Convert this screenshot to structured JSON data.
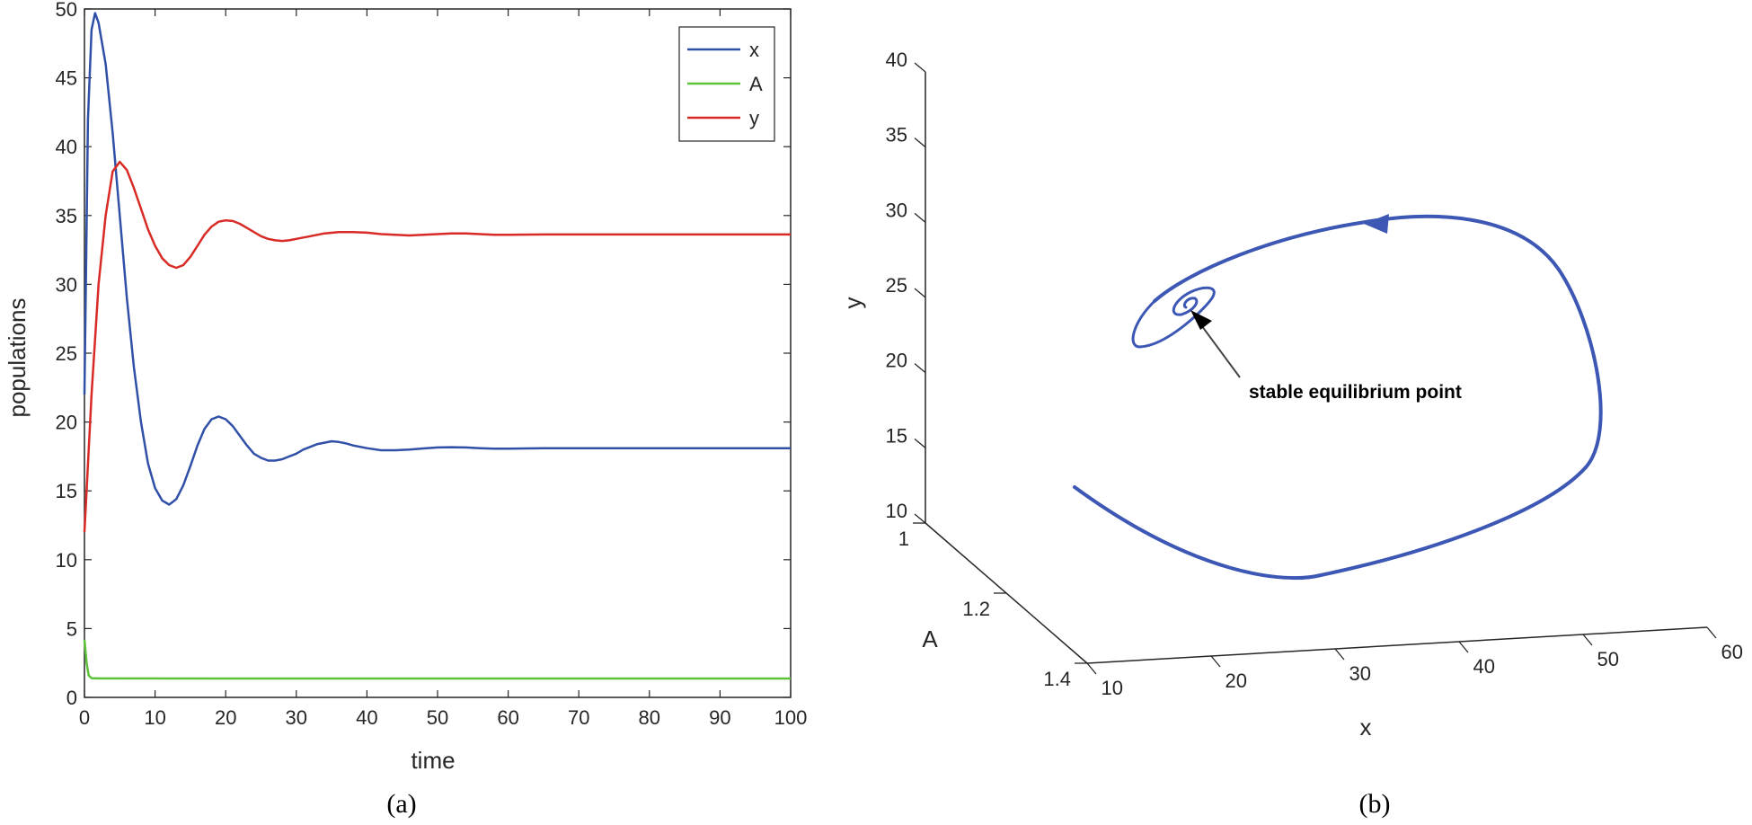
{
  "chart_data": [
    {
      "type": "line",
      "caption": "(a)",
      "xlabel": "time",
      "ylabel": "populations",
      "xlim": [
        0,
        100
      ],
      "ylim": [
        0,
        50
      ],
      "xticks": [
        0,
        10,
        20,
        30,
        40,
        50,
        60,
        70,
        80,
        90,
        100
      ],
      "yticks": [
        0,
        5,
        10,
        15,
        20,
        25,
        30,
        35,
        40,
        45,
        50
      ],
      "legend_position": "top-right",
      "grid": false,
      "series": [
        {
          "name": "x",
          "color": "#3050a8",
          "points": [
            [
              0,
              22
            ],
            [
              0.5,
              42
            ],
            [
              1,
              48.5
            ],
            [
              1.5,
              49.7
            ],
            [
              2,
              49
            ],
            [
              3,
              46
            ],
            [
              4,
              41
            ],
            [
              5,
              35
            ],
            [
              6,
              29
            ],
            [
              7,
              24
            ],
            [
              8,
              20
            ],
            [
              9,
              17
            ],
            [
              10,
              15.2
            ],
            [
              11,
              14.3
            ],
            [
              12,
              14
            ],
            [
              13,
              14.4
            ],
            [
              14,
              15.4
            ],
            [
              15,
              16.8
            ],
            [
              16,
              18.3
            ],
            [
              17,
              19.5
            ],
            [
              18,
              20.2
            ],
            [
              19,
              20.4
            ],
            [
              20,
              20.2
            ],
            [
              21,
              19.7
            ],
            [
              22,
              19
            ],
            [
              23,
              18.3
            ],
            [
              24,
              17.7
            ],
            [
              25,
              17.4
            ],
            [
              26,
              17.2
            ],
            [
              27,
              17.2
            ],
            [
              28,
              17.3
            ],
            [
              29,
              17.5
            ],
            [
              30,
              17.7
            ],
            [
              31,
              18
            ],
            [
              32,
              18.2
            ],
            [
              33,
              18.4
            ],
            [
              34,
              18.5
            ],
            [
              35,
              18.6
            ],
            [
              36,
              18.55
            ],
            [
              37,
              18.45
            ],
            [
              38,
              18.3
            ],
            [
              40,
              18.1
            ],
            [
              42,
              17.95
            ],
            [
              44,
              17.95
            ],
            [
              46,
              18
            ],
            [
              48,
              18.08
            ],
            [
              50,
              18.15
            ],
            [
              52,
              18.17
            ],
            [
              54,
              18.15
            ],
            [
              56,
              18.1
            ],
            [
              58,
              18.07
            ],
            [
              60,
              18.07
            ],
            [
              65,
              18.1
            ],
            [
              70,
              18.1
            ],
            [
              80,
              18.1
            ],
            [
              90,
              18.1
            ],
            [
              100,
              18.1
            ]
          ]
        },
        {
          "name": "A",
          "color": "#5cc23a",
          "points": [
            [
              0,
              4.2
            ],
            [
              0.3,
              2.5
            ],
            [
              0.6,
              1.6
            ],
            [
              1,
              1.4
            ],
            [
              2,
              1.38
            ],
            [
              5,
              1.38
            ],
            [
              20,
              1.37
            ],
            [
              50,
              1.37
            ],
            [
              100,
              1.37
            ]
          ]
        },
        {
          "name": "y",
          "color": "#d92b26",
          "points": [
            [
              0,
              12
            ],
            [
              1,
              22
            ],
            [
              2,
              30
            ],
            [
              3,
              35
            ],
            [
              4,
              38.2
            ],
            [
              5,
              38.9
            ],
            [
              6,
              38.3
            ],
            [
              7,
              37
            ],
            [
              8,
              35.5
            ],
            [
              9,
              34
            ],
            [
              10,
              32.8
            ],
            [
              11,
              31.9
            ],
            [
              12,
              31.4
            ],
            [
              13,
              31.2
            ],
            [
              14,
              31.4
            ],
            [
              15,
              32
            ],
            [
              16,
              32.8
            ],
            [
              17,
              33.6
            ],
            [
              18,
              34.2
            ],
            [
              19,
              34.55
            ],
            [
              20,
              34.65
            ],
            [
              21,
              34.6
            ],
            [
              22,
              34.4
            ],
            [
              23,
              34.1
            ],
            [
              24,
              33.8
            ],
            [
              25,
              33.5
            ],
            [
              26,
              33.3
            ],
            [
              27,
              33.2
            ],
            [
              28,
              33.15
            ],
            [
              29,
              33.2
            ],
            [
              30,
              33.3
            ],
            [
              32,
              33.5
            ],
            [
              34,
              33.7
            ],
            [
              36,
              33.8
            ],
            [
              38,
              33.8
            ],
            [
              40,
              33.75
            ],
            [
              42,
              33.65
            ],
            [
              44,
              33.6
            ],
            [
              46,
              33.55
            ],
            [
              48,
              33.6
            ],
            [
              50,
              33.65
            ],
            [
              52,
              33.7
            ],
            [
              54,
              33.7
            ],
            [
              56,
              33.65
            ],
            [
              58,
              33.6
            ],
            [
              60,
              33.6
            ],
            [
              65,
              33.62
            ],
            [
              70,
              33.62
            ],
            [
              80,
              33.62
            ],
            [
              90,
              33.62
            ],
            [
              100,
              33.62
            ]
          ]
        }
      ]
    },
    {
      "type": "line",
      "caption": "(b)",
      "xlabel": "x",
      "ylabel": "y",
      "zlabel": "A",
      "x_ticks": [
        "10",
        "20",
        "30",
        "40",
        "50",
        "60"
      ],
      "y_ticks": [
        "10",
        "15",
        "20",
        "25",
        "30",
        "35",
        "40"
      ],
      "a_ticks": [
        "1",
        "1.2",
        "1.4"
      ],
      "annotation": "stable equilibrium point",
      "series_color": "#3d57b4"
    }
  ]
}
